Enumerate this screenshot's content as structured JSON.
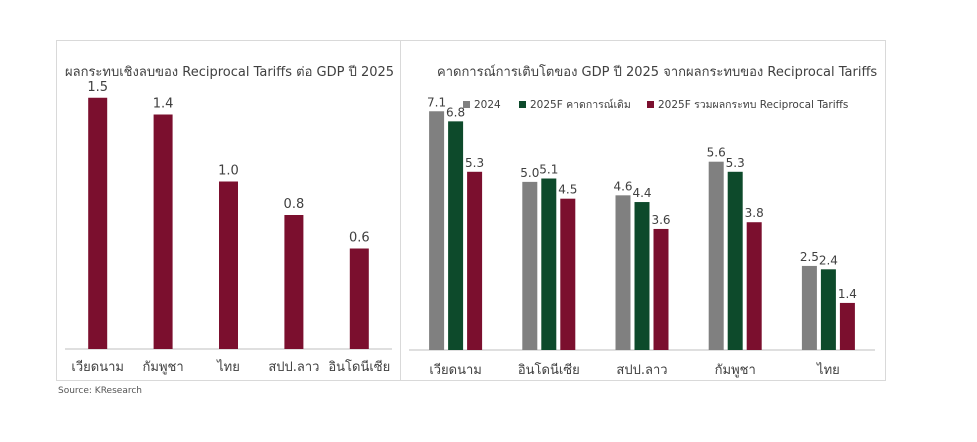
{
  "chart_data": [
    {
      "type": "bar",
      "title": "ผลกระทบเชิงลบของ  Reciprocal Tariffs ต่อ GDP ปี 2025",
      "categories": [
        "เวียดนาม",
        "กัมพูชา",
        "ไทย",
        "สปป.ลาว",
        "อินโดนีเซีย"
      ],
      "series": [
        {
          "values": [
            1.5,
            1.4,
            1.0,
            0.8,
            0.6
          ],
          "color": "#7b0f2e"
        }
      ],
      "ylim": [
        0,
        1.6
      ],
      "grid": false,
      "legend": "none"
    },
    {
      "type": "bar",
      "title": "คาดการณ์การเติบโตของ GDP ปี 2025 จากผลกระทบของ  Reciprocal Tariffs",
      "categories": [
        "เวียดนาม",
        "อินโดนีเซีย",
        "สปป.ลาว",
        "กัมพูชา",
        "ไทย"
      ],
      "series": [
        {
          "name": "2024",
          "values": [
            7.1,
            5.0,
            4.6,
            5.6,
            2.5
          ],
          "color": "#808080"
        },
        {
          "name": "2025F คาดการณ์เดิม",
          "values": [
            6.8,
            5.1,
            4.4,
            5.3,
            2.4
          ],
          "color": "#0d4a2b"
        },
        {
          "name": "2025F รวมผลกระทบ Reciprocal Tariffs",
          "values": [
            5.3,
            4.5,
            3.6,
            3.8,
            1.4
          ],
          "color": "#7b0f2e"
        }
      ],
      "ylim": [
        0,
        8
      ],
      "grid": false,
      "legend": "top"
    }
  ],
  "source": "Source: KResearch"
}
